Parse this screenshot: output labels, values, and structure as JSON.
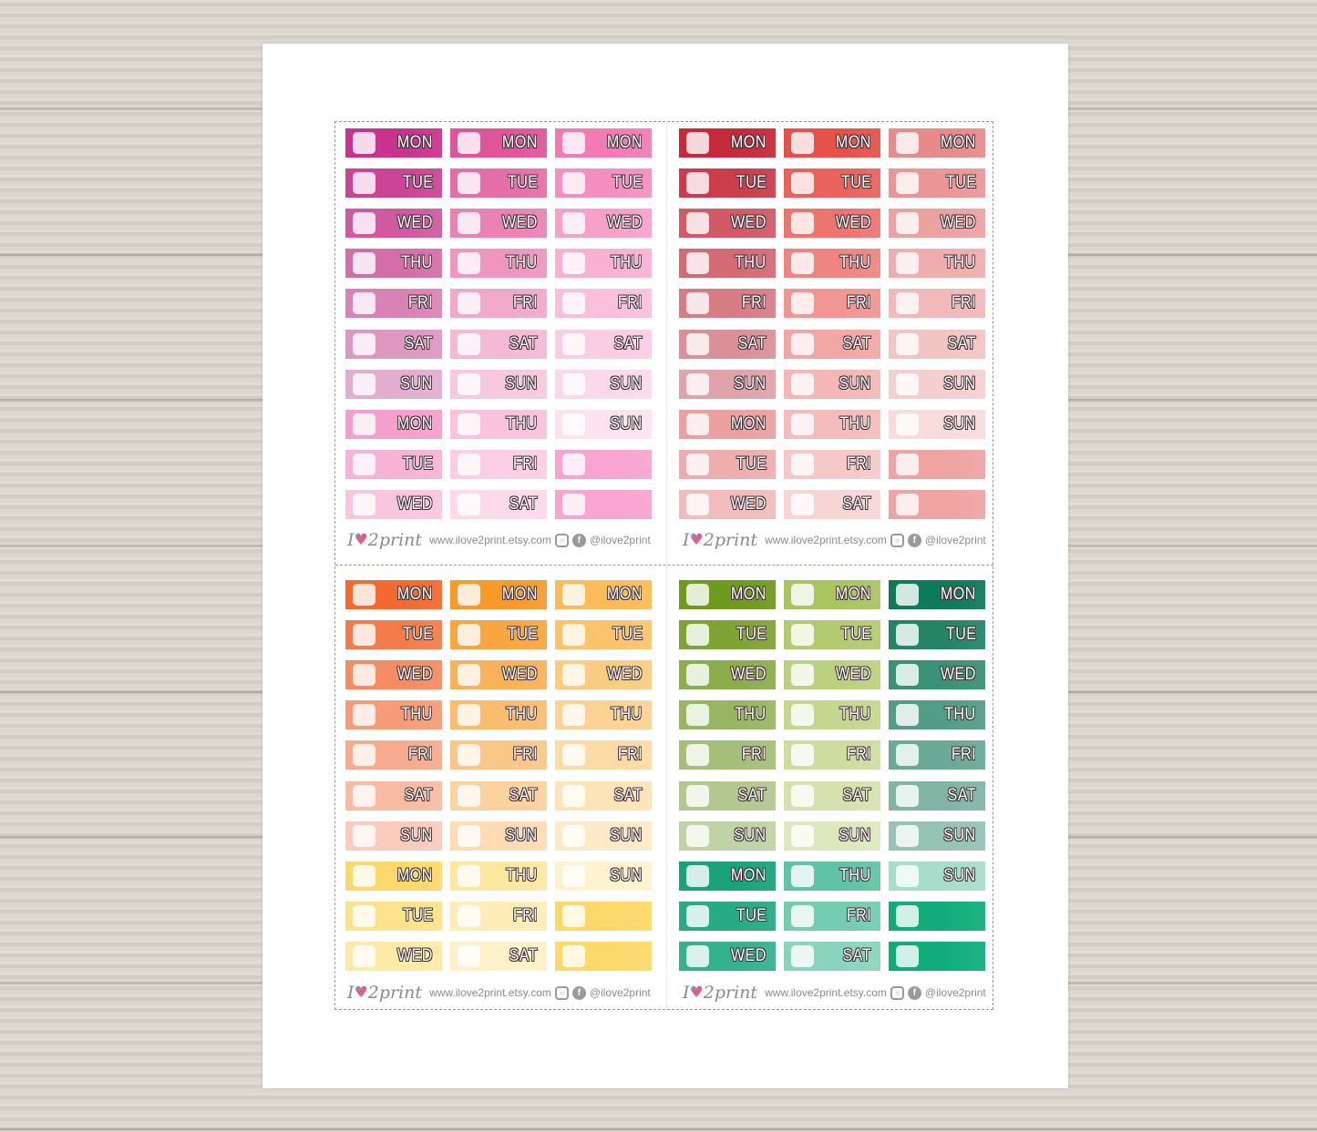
{
  "footer": {
    "logo_text": "I love 2print",
    "logo_left": "I",
    "logo_right": "2print",
    "url": "www.ilove2print.etsy.com",
    "handle": "@ilove2print",
    "icons": [
      "instagram-icon",
      "facebook-icon"
    ]
  },
  "text_color": "#ffffff",
  "outline_color": "#3d2a30",
  "panels": [
    {
      "name": "pink",
      "columns": [
        {
          "labels": [
            "MON",
            "TUE",
            "WED",
            "THU",
            "FRI",
            "SAT",
            "SUN",
            "MON",
            "TUE",
            "WED"
          ],
          "colors": [
            "#c8338e",
            "#cc4496",
            "#d05aa0",
            "#d46ea9",
            "#d983b5",
            "#dd98c0",
            "#e2aed0",
            "#f4a0cc",
            "#f7b3d6",
            "#f9c6df"
          ]
        },
        {
          "labels": [
            "MON",
            "TUE",
            "WED",
            "THU",
            "FRI",
            "SAT",
            "SUN",
            "THU",
            "FRI",
            "SAT"
          ],
          "colors": [
            "#e0549a",
            "#e66ea8",
            "#ea82b4",
            "#ee96c0",
            "#f1a8cb",
            "#f4b9d5",
            "#f7c9de",
            "#f9c2dd",
            "#fbcee4",
            "#fcdaea"
          ]
        },
        {
          "labels": [
            "MON",
            "TUE",
            "WED",
            "THU",
            "FRI",
            "SAT",
            "SUN",
            "SUN",
            "",
            ""
          ],
          "colors": [
            "#f27bb4",
            "#f58fc0",
            "#f7a1ca",
            "#f9b1d3",
            "#fac0db",
            "#fbcde3",
            "#fcd9ea",
            "#fde2ef",
            "#f7a4d0",
            "#f7a4d0"
          ]
        }
      ]
    },
    {
      "name": "red",
      "columns": [
        {
          "labels": [
            "MON",
            "TUE",
            "WED",
            "THU",
            "FRI",
            "SAT",
            "SUN",
            "MON",
            "TUE",
            "WED"
          ],
          "colors": [
            "#c52a3a",
            "#cc3c4a",
            "#d05a65",
            "#d36a74",
            "#d77c85",
            "#db9098",
            "#e0a3aa",
            "#eba0a0",
            "#eeaeae",
            "#f1bcbc"
          ]
        },
        {
          "labels": [
            "MON",
            "TUE",
            "WED",
            "THU",
            "FRI",
            "SAT",
            "SUN",
            "THU",
            "FRI",
            "SAT"
          ],
          "colors": [
            "#e6514a",
            "#ea625c",
            "#ed756f",
            "#ef8581",
            "#f19693",
            "#f3a7a5",
            "#f5b7b6",
            "#f4bcbb",
            "#f6c9c8",
            "#f8d5d5"
          ]
        },
        {
          "labels": [
            "MON",
            "TUE",
            "WED",
            "THU",
            "FRI",
            "SAT",
            "SUN",
            "SUN",
            "",
            ""
          ],
          "colors": [
            "#e88a8a",
            "#eb9696",
            "#eda2a2",
            "#efadad",
            "#f1b9b9",
            "#f3c4c4",
            "#f5cfcf",
            "#f8dcdc",
            "#efa3a3",
            "#efa3a3"
          ]
        }
      ]
    },
    {
      "name": "orange-yellow",
      "columns": [
        {
          "labels": [
            "MON",
            "TUE",
            "WED",
            "THU",
            "FRI",
            "SAT",
            "SUN",
            "MON",
            "TUE",
            "WED"
          ],
          "colors": [
            "#f26a30",
            "#f47c4a",
            "#f58c62",
            "#f69c78",
            "#f8ab8e",
            "#f9bba4",
            "#fbcbbb",
            "#fcd96b",
            "#fde38c",
            "#fdeaa8"
          ]
        },
        {
          "labels": [
            "MON",
            "TUE",
            "WED",
            "THU",
            "FRI",
            "SAT",
            "SUN",
            "THU",
            "FRI",
            "SAT"
          ],
          "colors": [
            "#f79a2a",
            "#f8a640",
            "#f9b259",
            "#fabd70",
            "#fbc787",
            "#fcd29e",
            "#fddcb4",
            "#fde8a0",
            "#feedb6",
            "#fef1c8"
          ]
        },
        {
          "labels": [
            "MON",
            "TUE",
            "WED",
            "THU",
            "FRI",
            "SAT",
            "SUN",
            "SUN",
            "",
            ""
          ],
          "colors": [
            "#fbbb58",
            "#fbc46c",
            "#fccc80",
            "#fcd392",
            "#fddba5",
            "#fde3b8",
            "#fee9c9",
            "#fef3cf",
            "#fdd96a",
            "#fdd96a"
          ]
        }
      ]
    },
    {
      "name": "green-teal",
      "columns": [
        {
          "labels": [
            "MON",
            "TUE",
            "WED",
            "THU",
            "FRI",
            "SAT",
            "SUN",
            "MON",
            "TUE",
            "WED"
          ],
          "colors": [
            "#6e9a1e",
            "#7ea436",
            "#8bad4c",
            "#98b662",
            "#a5bf78",
            "#b2c88e",
            "#c0d2a6",
            "#1aa37a",
            "#27ab84",
            "#36b18d"
          ]
        },
        {
          "labels": [
            "MON",
            "TUE",
            "WED",
            "THU",
            "FRI",
            "SAT",
            "SUN",
            "THU",
            "FRI",
            "SAT"
          ],
          "colors": [
            "#a8c560",
            "#b2cb70",
            "#bbd180",
            "#c4d78f",
            "#cddd9f",
            "#d5e2ae",
            "#dde8be",
            "#5ec4a4",
            "#74ccb1",
            "#8ad4bd"
          ]
        },
        {
          "labels": [
            "MON",
            "TUE",
            "WED",
            "THU",
            "FRI",
            "SAT",
            "SUN",
            "SUN",
            "",
            ""
          ],
          "colors": [
            "#0d7a5a",
            "#248566",
            "#3b9175",
            "#529d85",
            "#69a995",
            "#80b5a6",
            "#97c2b6",
            "#a7decb",
            "#10ad7b",
            "#10ad7b"
          ]
        }
      ]
    }
  ]
}
